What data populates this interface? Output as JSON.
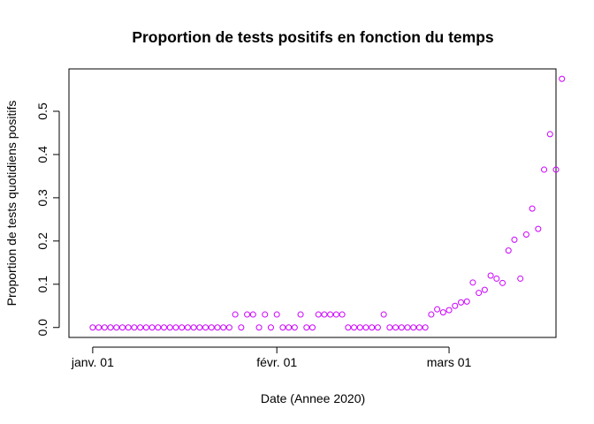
{
  "chart_data": {
    "type": "scatter",
    "title": "Proportion de tests positifs en fonction du temps",
    "xlabel": "Date (Annee 2020)",
    "ylabel": "Proportion de tests quotidiens positifs",
    "x_start": "2020-01-01",
    "xlim": [
      "2019-12-28",
      "2020-03-19"
    ],
    "ylim": [
      -0.023,
      0.598
    ],
    "x_ticks": [
      {
        "date": "2020-01-01",
        "label": "janv. 01"
      },
      {
        "date": "2020-02-01",
        "label": "févr. 01"
      },
      {
        "date": "2020-03-01",
        "label": "mars 01"
      }
    ],
    "y_ticks": [
      {
        "value": 0.0,
        "label": "0.0"
      },
      {
        "value": 0.1,
        "label": "0.1"
      },
      {
        "value": 0.2,
        "label": "0.2"
      },
      {
        "value": 0.3,
        "label": "0.3"
      },
      {
        "value": 0.4,
        "label": "0.4"
      },
      {
        "value": 0.5,
        "label": "0.5"
      }
    ],
    "grid": false,
    "marker_color": "#cc00ff",
    "series": [
      {
        "values": [
          0,
          0,
          0,
          0,
          0,
          0,
          0,
          0,
          0,
          0,
          0,
          0,
          0,
          0,
          0,
          0,
          0,
          0,
          0,
          0,
          0,
          0,
          0,
          0,
          0.03,
          0,
          0.03,
          0.03,
          0,
          0.03,
          0,
          0.03,
          0,
          0,
          0,
          0.03,
          0,
          0,
          0.03,
          0.03,
          0.03,
          0.03,
          0.03,
          0,
          0,
          0,
          0,
          0,
          0,
          0.03,
          0,
          0,
          0,
          0,
          0,
          0,
          0,
          0.03,
          0.042,
          0.035,
          0.04,
          0.05,
          0.058,
          0.06,
          0.104,
          0.08,
          0.087,
          0.12,
          0.113,
          0.103,
          0.178,
          0.203,
          0.113,
          0.215,
          0.275,
          0.228,
          0.365,
          0.447,
          0.365,
          0.575
        ]
      }
    ]
  }
}
